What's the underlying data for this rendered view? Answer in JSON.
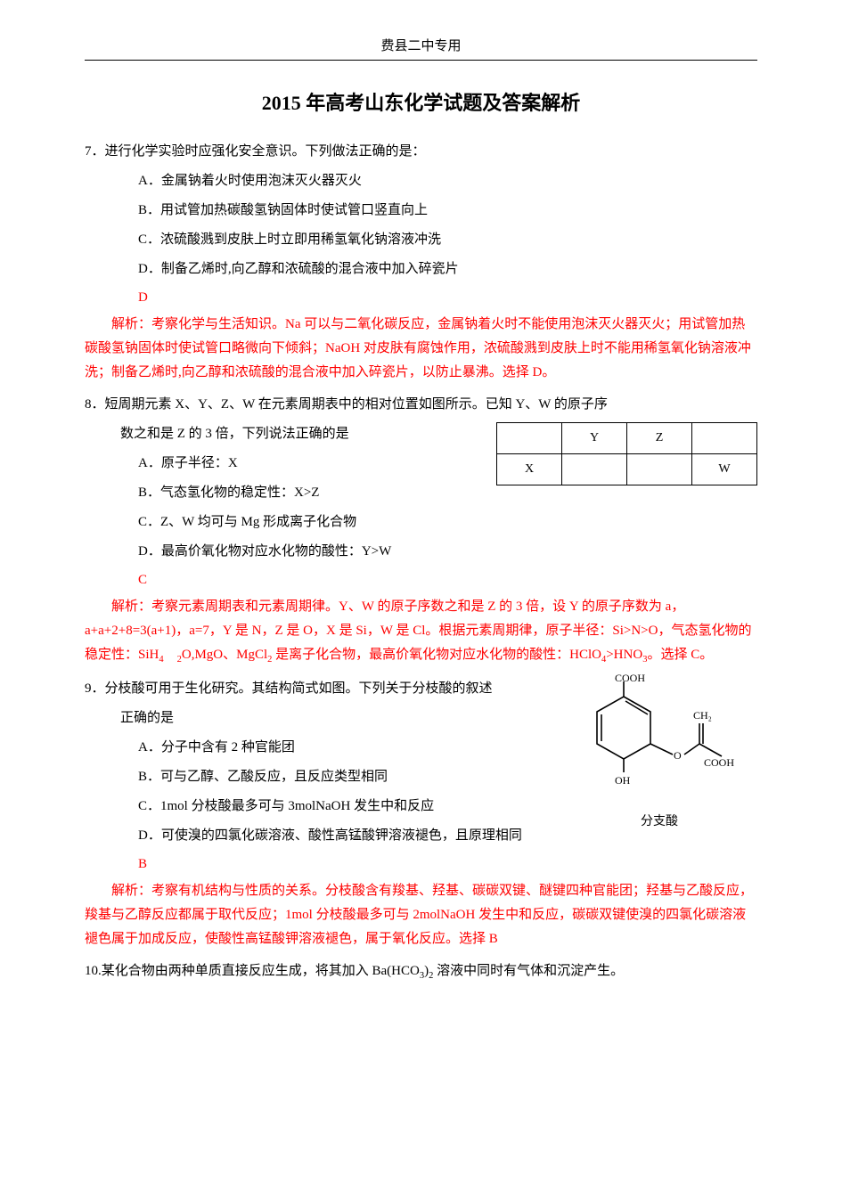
{
  "header": "费县二中专用",
  "title": "2015 年高考山东化学试题及答案解析",
  "q7": {
    "stem": "7．进行化学实验时应强化安全意识。下列做法正确的是：",
    "A": "A．金属钠着火时使用泡沫灭火器灭火",
    "B": "B．用试管加热碳酸氢钠固体时使试管口竖直向上",
    "C": "C．浓硫酸溅到皮肤上时立即用稀氢氧化钠溶液冲洗",
    "D": "D．制备乙烯时,向乙醇和浓硫酸的混合液中加入碎瓷片",
    "ans": "D",
    "explain": "解析：考察化学与生活知识。Na 可以与二氧化碳反应，金属钠着火时不能使用泡沫灭火器灭火；用试管加热碳酸氢钠固体时使试管口略微向下倾斜；NaOH 对皮肤有腐蚀作用，浓硫酸溅到皮肤上时不能用稀氢氧化钠溶液冲洗；制备乙烯时,向乙醇和浓硫酸的混合液中加入碎瓷片，以防止暴沸。选择 D。"
  },
  "q8": {
    "stem": "8．短周期元素 X、Y、Z、W 在元素周期表中的相对位置如图所示。已知 Y、W 的原子序",
    "stem2": "数之和是 Z 的 3 倍，下列说法正确的是",
    "A": "A．原子半径：X",
    "B": "B．气态氢化物的稳定性：X>Z",
    "C": "C．Z、W 均可与 Mg 形成离子化合物",
    "D": "D．最高价氧化物对应水化物的酸性：Y>W",
    "ans": "C",
    "table": {
      "r1": [
        "",
        "Y",
        "Z",
        ""
      ],
      "r2": [
        "X",
        "",
        "",
        "W"
      ]
    },
    "explain_html": "解析：考察元素周期表和元素周期律。Y、W 的原子序数之和是 Z 的 3 倍，设 Y 的原子序数为 a，a+a+2+8=3(a+1)，a=7，Y 是 N，Z 是 O，X 是 Si，W 是 Cl。根据元素周期律，原子半径：Si>N>O，气态氢化物的稳定性：SiH<sub>4</sub>　<sub>2</sub>O,MgO、MgCl<sub>2</sub> 是离子化合物，最高价氧化物对应水化物的酸性：HClO<sub>4</sub>>HNO<sub>3</sub>。选择 C。"
  },
  "q9": {
    "stem": "9．分枝酸可用于生化研究。其结构简式如图。下列关于分枝酸的叙述",
    "stem2": "正确的是",
    "A": "A．分子中含有 2 种官能团",
    "B": "B．可与乙醇、乙酸反应，且反应类型相同",
    "C": "C．1mol 分枝酸最多可与 3molNaOH 发生中和反应",
    "D": "D．可使溴的四氯化碳溶液、酸性高锰酸钾溶液褪色，且原理相同",
    "ans": "B",
    "caption": "分支酸",
    "labels": {
      "cooh": "COOH",
      "ch2": "CH₂",
      "oh": "OH",
      "o": "O"
    },
    "explain": "解析：考察有机结构与性质的关系。分枝酸含有羧基、羟基、碳碳双键、醚键四种官能团；羟基与乙酸反应，羧基与乙醇反应都属于取代反应；1mol 分枝酸最多可与 2molNaOH 发生中和反应，碳碳双键使溴的四氯化碳溶液褪色属于加成反应，使酸性高锰酸钾溶液褪色，属于氧化反应。选择 B"
  },
  "q10": {
    "stem_html": "10.某化合物由两种单质直接反应生成，将其加入 Ba(HCO<sub>3</sub>)<sub>2</sub> 溶液中同时有气体和沉淀产生。"
  },
  "colors": {
    "text": "#000000",
    "accent": "#ff0000",
    "bg": "#ffffff"
  }
}
